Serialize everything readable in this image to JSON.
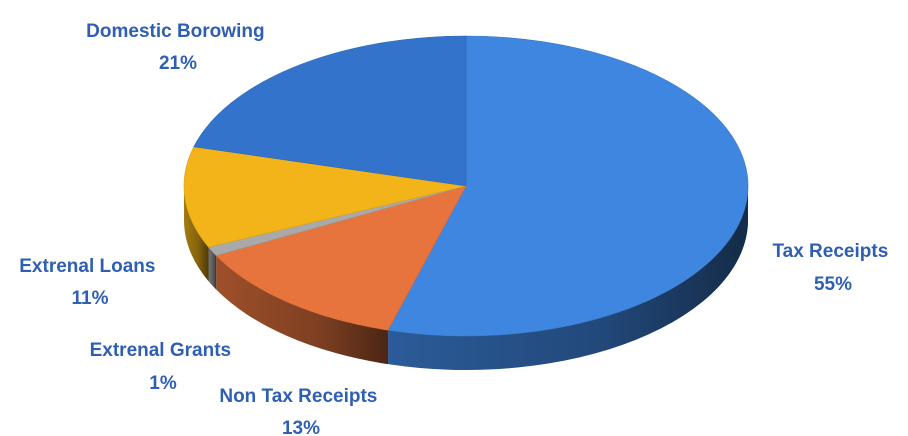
{
  "chart_data": {
    "type": "pie",
    "title": "",
    "style": "3d",
    "slices": [
      {
        "label": "Tax Receipts",
        "percent_label": "55%",
        "value": 55,
        "color": "#3f86e0"
      },
      {
        "label": "Non Tax Receipts",
        "percent_label": "13%",
        "value": 13,
        "color": "#e8743d"
      },
      {
        "label": "Extrenal Grants",
        "percent_label": "1%",
        "value": 1,
        "color": "#a9a9a9"
      },
      {
        "label": "Extrenal Loans",
        "percent_label": "11%",
        "value": 11,
        "color": "#f2b418"
      },
      {
        "label": "Domestic Borowing",
        "percent_label": "21%",
        "value": 21,
        "color": "#3473cc"
      }
    ]
  }
}
